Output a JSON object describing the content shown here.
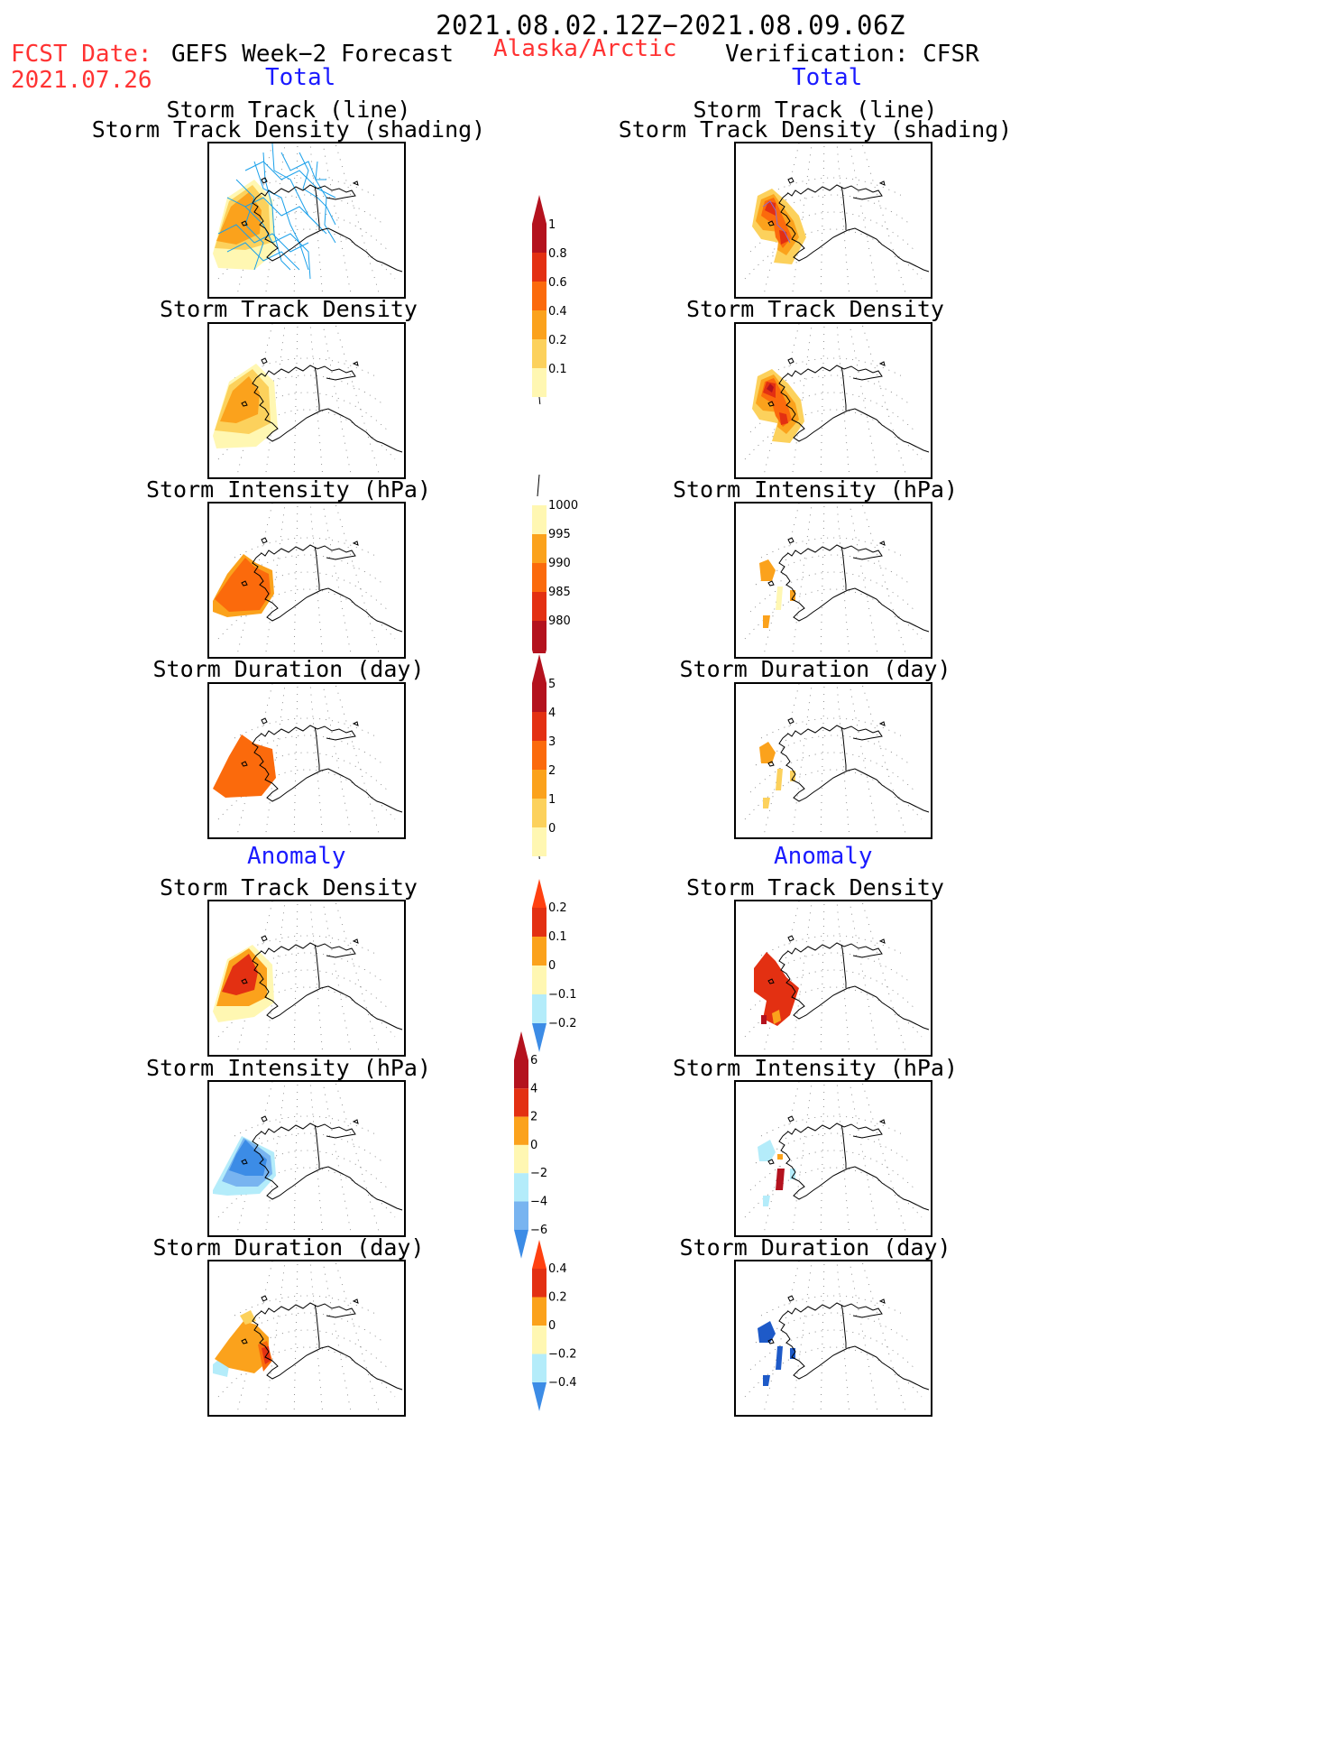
{
  "header": {
    "period": "2021.08.02.12Z−2021.08.09.06Z",
    "fcst_label": "FCST Date:",
    "fcst_date": "2021.07.26",
    "left_title": "GEFS Week−2 Forecast",
    "region": "Alaska/Arctic",
    "right_title": "Verification: CFSR",
    "total_label": "Total",
    "anomaly_label": "Anomaly"
  },
  "panel_titles": {
    "track_line": "Storm Track (line)",
    "track_shading": "Storm Track Density (shading)",
    "density": "Storm Track Density",
    "intensity": "Storm Intensity (hPa)",
    "duration": "Storm Duration (day)"
  },
  "colors": {
    "pale": "#fff7b2",
    "lightorange": "#fcd15c",
    "orange": "#fba21c",
    "darkorange": "#fb6a0c",
    "red": "#e33012",
    "darkred": "#b4121e",
    "lightblue": "#b4ecfa",
    "midblue": "#78b4f0",
    "blue": "#3c8ce6",
    "darkblue": "#1e5ac8",
    "track": "#1aa0ea"
  },
  "chart_data": [
    {
      "type": "heatmap",
      "name": "gefs-total-track-density-with-tracks",
      "title": "Storm Track (line) / Storm Track Density (shading)",
      "source": "GEFS Week-2 Forecast",
      "field": "Total",
      "colorbar": {
        "ticks": [
          "1",
          "0.8",
          "0.6",
          "0.4",
          "0.2",
          "0.1"
        ]
      }
    },
    {
      "type": "heatmap",
      "name": "cfsr-total-track-density-with-tracks",
      "title": "Storm Track (line) / Storm Track Density (shading)",
      "source": "Verification: CFSR",
      "field": "Total"
    },
    {
      "type": "heatmap",
      "name": "gefs-total-density",
      "title": "Storm Track Density",
      "field": "Total"
    },
    {
      "type": "heatmap",
      "name": "cfsr-total-density",
      "title": "Storm Track Density",
      "field": "Total"
    },
    {
      "type": "heatmap",
      "name": "gefs-total-intensity",
      "title": "Storm Intensity (hPa)",
      "field": "Total",
      "colorbar": {
        "ticks": [
          "1000",
          "995",
          "990",
          "985",
          "980"
        ]
      }
    },
    {
      "type": "heatmap",
      "name": "cfsr-total-intensity",
      "title": "Storm Intensity (hPa)",
      "field": "Total"
    },
    {
      "type": "heatmap",
      "name": "gefs-total-duration",
      "title": "Storm Duration (day)",
      "field": "Total",
      "colorbar": {
        "ticks": [
          "5",
          "4",
          "3",
          "2",
          "1",
          "0"
        ]
      }
    },
    {
      "type": "heatmap",
      "name": "cfsr-total-duration",
      "title": "Storm Duration (day)",
      "field": "Total"
    },
    {
      "type": "heatmap",
      "name": "gefs-anomaly-density",
      "title": "Storm Track Density",
      "field": "Anomaly",
      "colorbar": {
        "ticks": [
          "0.2",
          "0.1",
          "0",
          "−0.1",
          "−0.2"
        ]
      }
    },
    {
      "type": "heatmap",
      "name": "cfsr-anomaly-density",
      "title": "Storm Track Density",
      "field": "Anomaly"
    },
    {
      "type": "heatmap",
      "name": "gefs-anomaly-intensity",
      "title": "Storm Intensity (hPa)",
      "field": "Anomaly",
      "colorbar": {
        "ticks": [
          "6",
          "4",
          "2",
          "0",
          "−2",
          "−4",
          "−6"
        ]
      }
    },
    {
      "type": "heatmap",
      "name": "cfsr-anomaly-intensity",
      "title": "Storm Intensity (hPa)",
      "field": "Anomaly"
    },
    {
      "type": "heatmap",
      "name": "gefs-anomaly-duration",
      "title": "Storm Duration (day)",
      "field": "Anomaly",
      "colorbar": {
        "ticks": [
          "0.4",
          "0.2",
          "0",
          "−0.2",
          "−0.4"
        ]
      }
    },
    {
      "type": "heatmap",
      "name": "cfsr-anomaly-duration",
      "title": "Storm Duration (day)",
      "field": "Anomaly"
    }
  ]
}
